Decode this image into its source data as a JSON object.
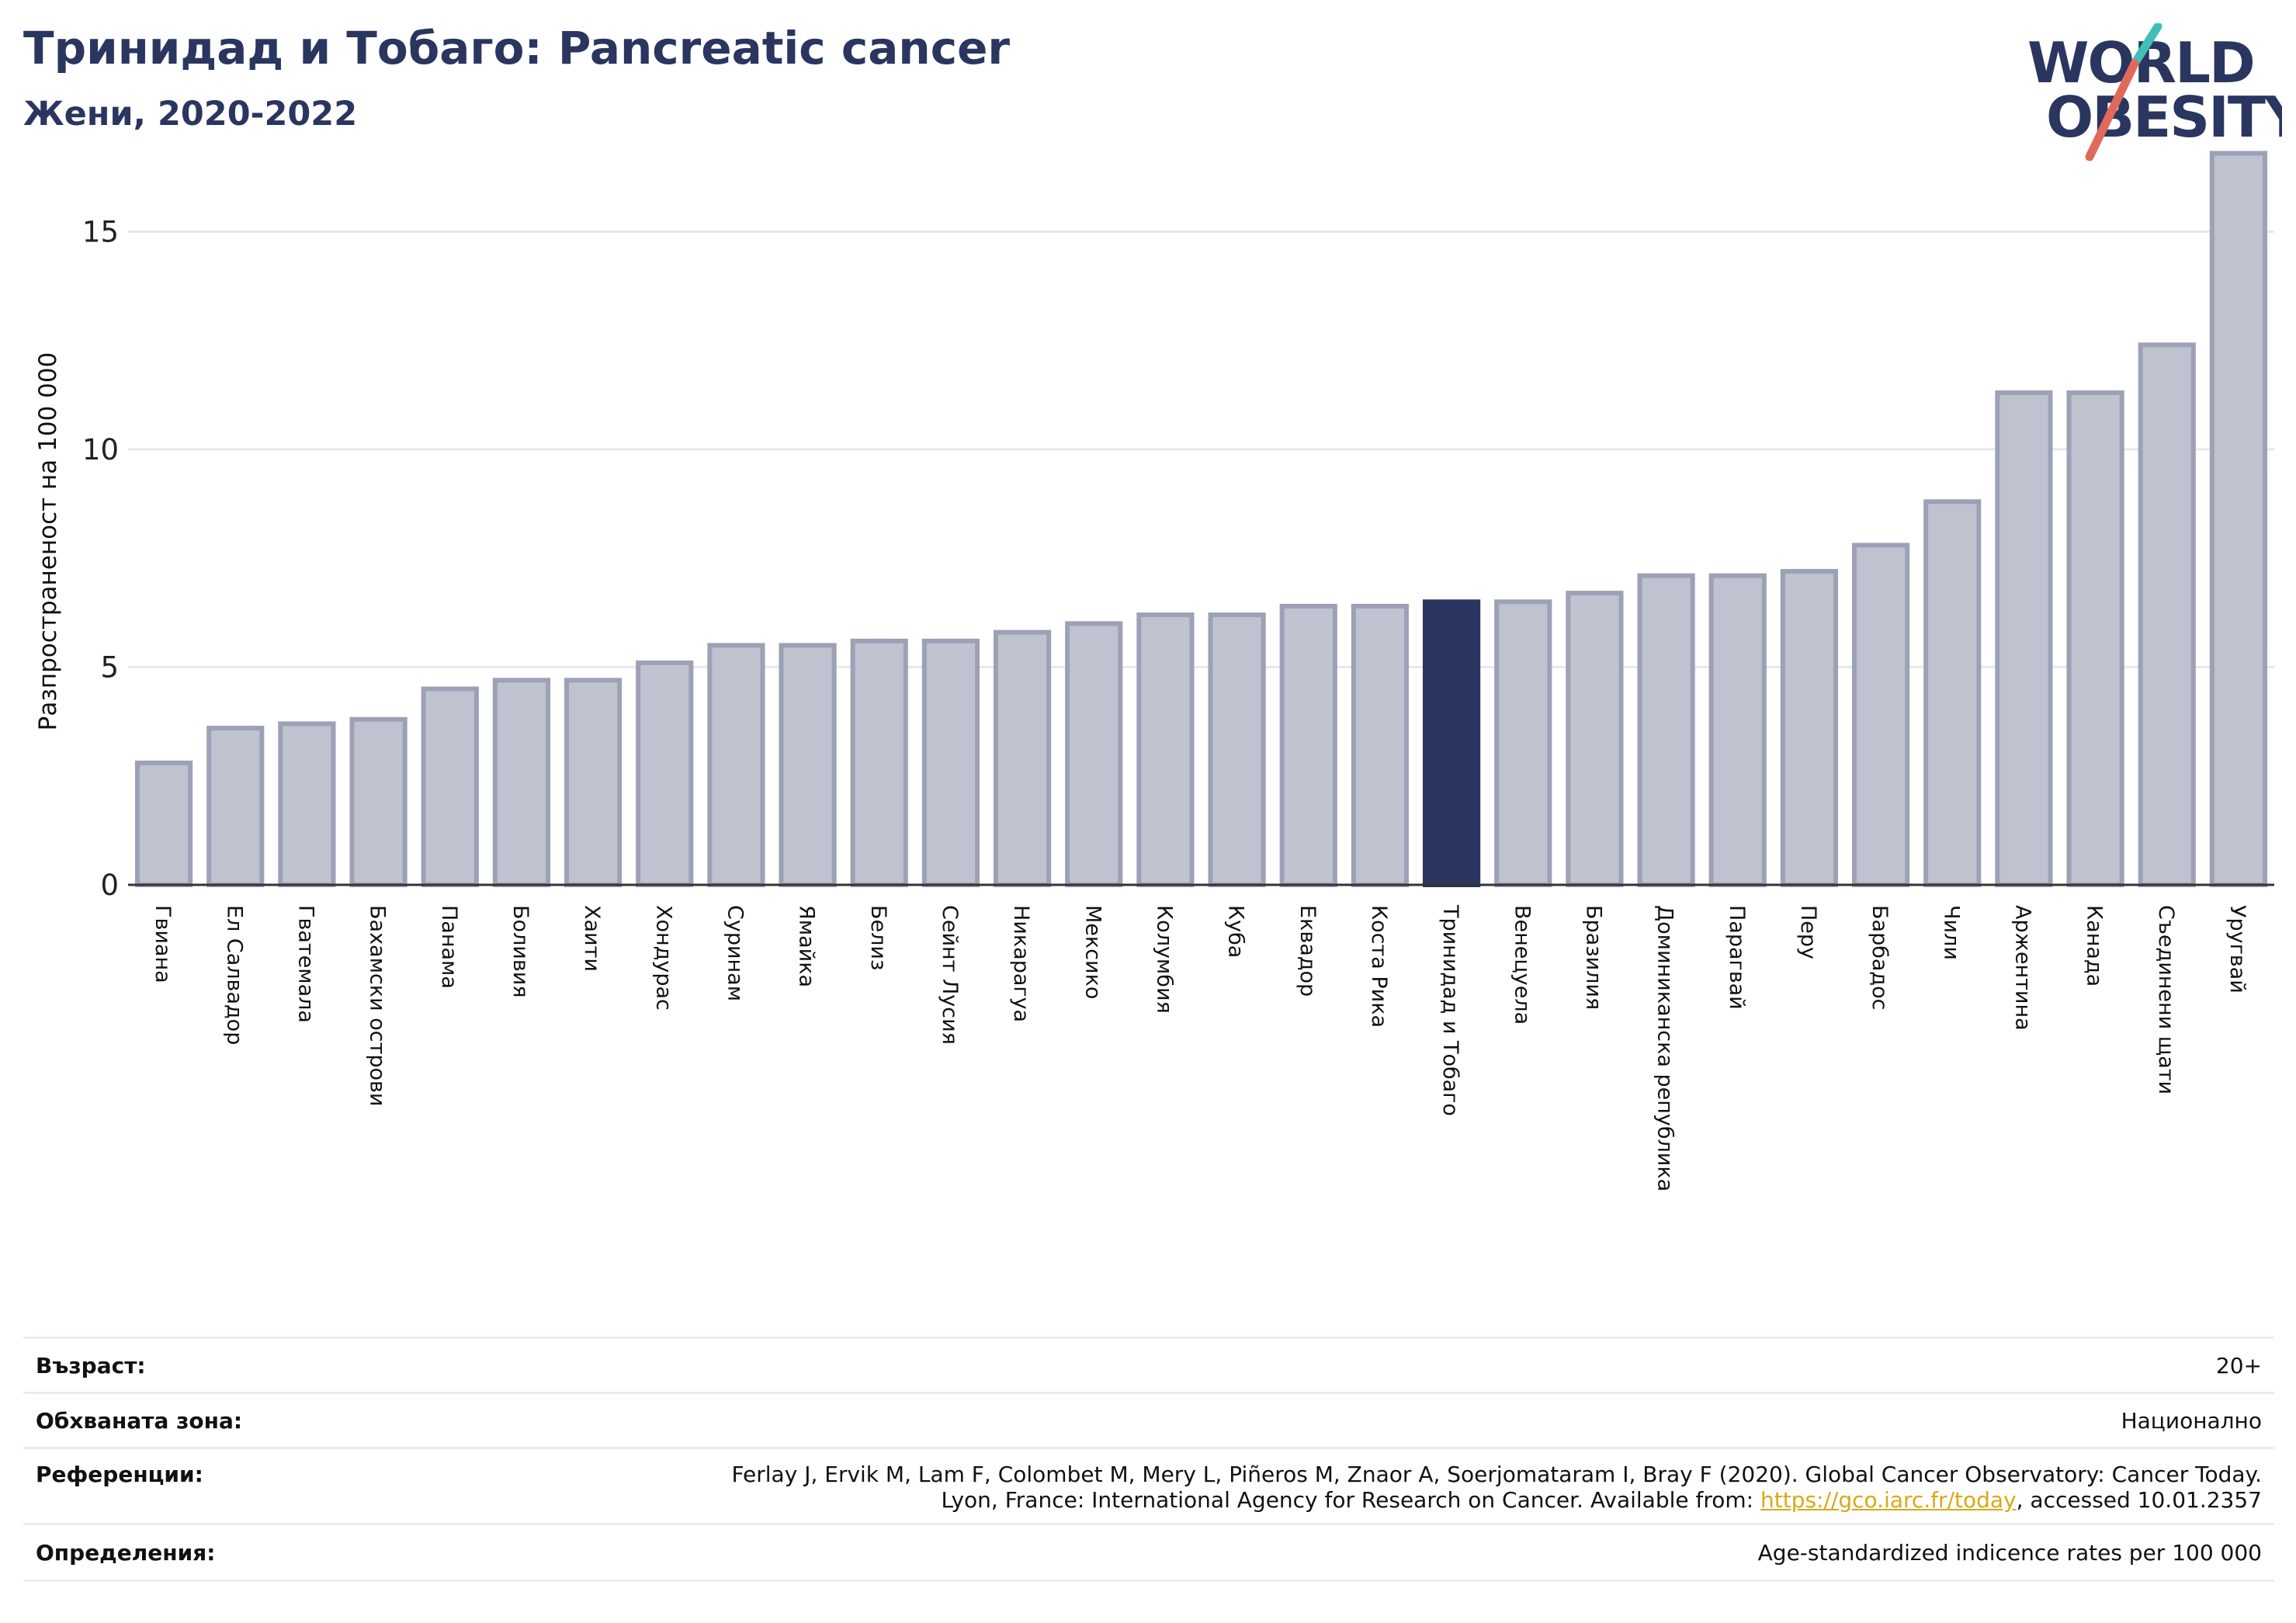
{
  "header": {
    "title": "Тринидад и Тобаго: Pancreatic cancer",
    "subtitle": "Жени, 2020-2022"
  },
  "logo": {
    "line1": "WORLD",
    "line2": "OBESITY",
    "name": "world-obesity-logo"
  },
  "colors": {
    "highlight": "#2a3560",
    "bar": "#bfc2cf",
    "bar_stroke": "#9da1b6",
    "grid": "#e6e8ee",
    "accent_teal": "#3fbfb5",
    "accent_coral": "#e06a5a",
    "link": "#d9a916"
  },
  "chart_data": {
    "type": "bar",
    "title": "Тринидад и Тобаго: Pancreatic cancer",
    "subtitle": "Жени, 2020-2022",
    "xlabel": "",
    "ylabel": "Разпространеност  на 100 000",
    "ylim": [
      0,
      17.2
    ],
    "yticks": [
      0,
      5,
      10,
      15
    ],
    "grid": true,
    "highlight_category": "Тринидад и Тобаго",
    "categories": [
      "Гвиана",
      "Ел Салвадор",
      "Гватемала",
      "Бахамски острови",
      "Панама",
      "Боливия",
      "Хаити",
      "Хондурас",
      "Суринам",
      "Ямайка",
      "Белиз",
      "Сейнт Лусия",
      "Никарагуа",
      "Мексико",
      "Колумбия",
      "Куба",
      "Еквадор",
      "Коста Рика",
      "Тринидад и Тобаго",
      "Венецуела",
      "Бразилия",
      "Доминиканска република",
      "Парагвай",
      "Перу",
      "Барбадос",
      "Чили",
      "Аржентина",
      "Канада",
      "Съединени щати",
      "Уругвай"
    ],
    "values": [
      2.8,
      3.6,
      3.7,
      3.8,
      4.5,
      4.7,
      4.7,
      5.1,
      5.5,
      5.5,
      5.6,
      5.6,
      5.8,
      6.0,
      6.2,
      6.2,
      6.4,
      6.4,
      6.5,
      6.5,
      6.7,
      7.1,
      7.1,
      7.2,
      7.8,
      8.8,
      11.3,
      11.3,
      12.4,
      16.8
    ]
  },
  "info": {
    "age_label": "Възраст:",
    "age_value": "20+",
    "coverage_label": "Обхваната зона:",
    "coverage_value": "Национално",
    "references_label": "Референции:",
    "references_line1": "Ferlay J, Ervik M, Lam F, Colombet M, Mery L, Piñeros M, Znaor A, Soerjomataram I, Bray F (2020). Global Cancer Observatory: Cancer Today.",
    "references_line2_prefix": "Lyon, France: International Agency for Research on Cancer. Available from: ",
    "references_link": "https://gco.iarc.fr/today",
    "references_line2_suffix": ", accessed 10.01.2357",
    "definitions_label": "Определения:",
    "definitions_value": "Age-standardized indicence rates per 100 000"
  }
}
